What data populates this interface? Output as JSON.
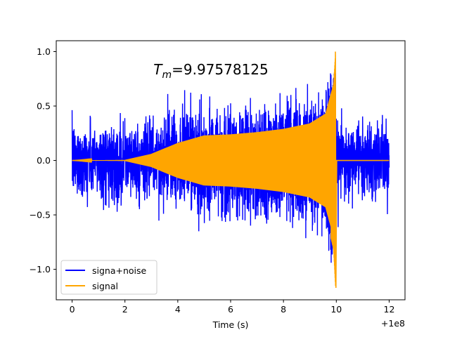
{
  "chart_data": {
    "type": "line",
    "title": "$T_m$=9.97578125",
    "title_display": "T_m=9.97578125",
    "xlabel": "Time (s)",
    "ylabel": "",
    "x_offset_label": "+1e8",
    "xlim": [
      -0.6,
      12.6
    ],
    "ylim": [
      -1.28,
      1.1
    ],
    "xticks": [
      0,
      2,
      4,
      6,
      8,
      10,
      12
    ],
    "xtick_labels": [
      "0",
      "2",
      "4",
      "6",
      "8",
      "10",
      "12"
    ],
    "yticks": [
      -1.0,
      -0.5,
      0.0,
      0.5,
      1.0
    ],
    "ytick_labels": [
      "−1.0",
      "−0.5",
      "0.0",
      "0.5",
      "1.0"
    ],
    "grid": false,
    "legend_position": "lower left",
    "merger_time": 9.97578125,
    "series": [
      {
        "name": "signa+noise",
        "color": "#0000ff",
        "x_range": [
          0,
          12
        ],
        "typical_envelope": 0.6,
        "peak_max": 0.8,
        "peak_min": -0.94
      },
      {
        "name": "signal",
        "color": "#ffa500",
        "x_range": [
          0,
          12
        ],
        "envelope": [
          {
            "x": 0.0,
            "amp": 0.0
          },
          {
            "x": 2.0,
            "amp": 0.005
          },
          {
            "x": 3.0,
            "amp": 0.06
          },
          {
            "x": 4.0,
            "amp": 0.16
          },
          {
            "x": 5.0,
            "amp": 0.23
          },
          {
            "x": 6.0,
            "amp": 0.24
          },
          {
            "x": 7.0,
            "amp": 0.26
          },
          {
            "x": 8.0,
            "amp": 0.29
          },
          {
            "x": 9.0,
            "amp": 0.34
          },
          {
            "x": 9.6,
            "amp": 0.43
          },
          {
            "x": 9.9,
            "amp": 0.7
          }
        ],
        "peak_max": 1.0,
        "peak_min": -1.17
      }
    ]
  }
}
